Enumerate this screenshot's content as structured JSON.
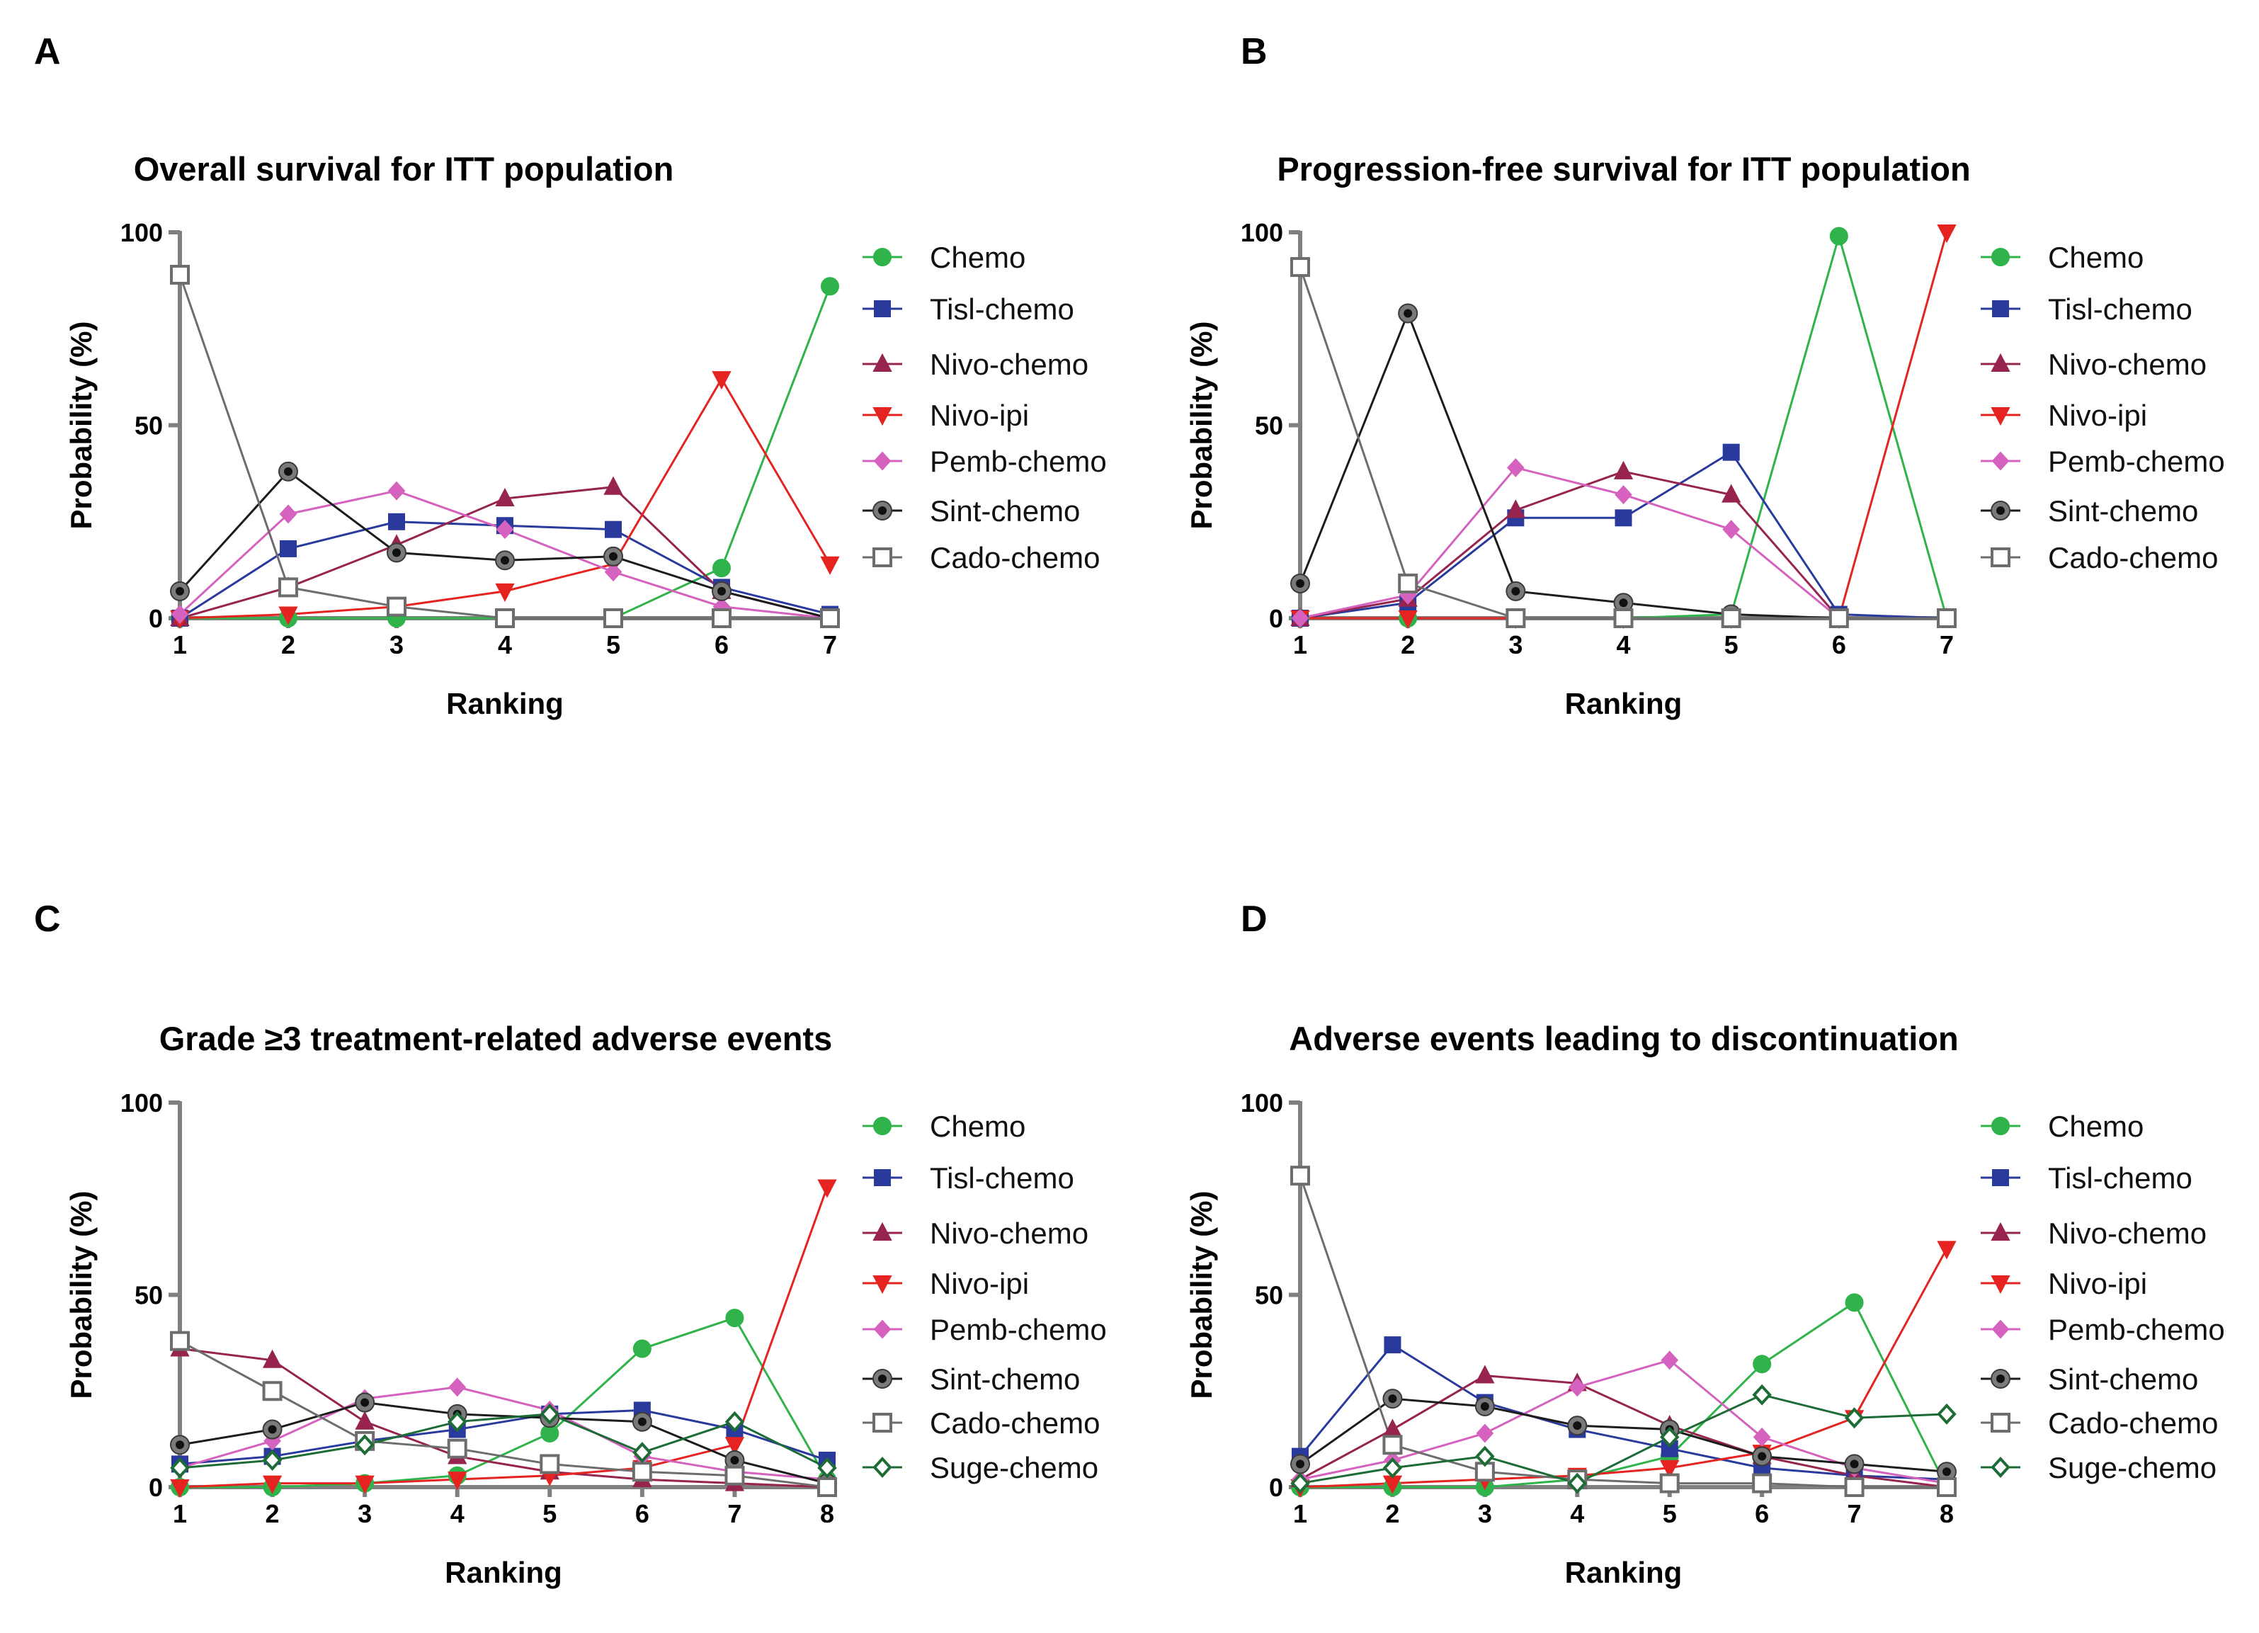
{
  "figure": {
    "series_styles": [
      {
        "name": "Chemo",
        "color": "#2fb34a",
        "marker": "circle",
        "fill": "#2fb34a"
      },
      {
        "name": "Tisl-chemo",
        "color": "#2a3a9c",
        "marker": "square",
        "fill": "#2a3a9c"
      },
      {
        "name": "Nivo-chemo",
        "color": "#96244f",
        "marker": "triangle-up",
        "fill": "#96244f"
      },
      {
        "name": "Nivo-ipi",
        "color": "#e52421",
        "marker": "triangle-down",
        "fill": "#e52421"
      },
      {
        "name": "Pemb-chemo",
        "color": "#d562be",
        "marker": "diamond",
        "fill": "#d562be"
      },
      {
        "name": "Sint-chemo",
        "color": "#1c1c1c",
        "marker": "circle-ring",
        "fill": "#1c1c1c"
      },
      {
        "name": "Cado-chemo",
        "color": "#6d6d6d",
        "marker": "square-open",
        "fill": "#ffffff"
      },
      {
        "name": "Suge-chemo",
        "color": "#1d6b35",
        "marker": "diamond-open",
        "fill": "#ffffff"
      }
    ],
    "axis_color": "#808080"
  },
  "chart_data": [
    {
      "panel": "A",
      "type": "line",
      "title": "Overall survival for ITT population",
      "xlabel": "Ranking",
      "ylabel": "Probability (%)",
      "x": [
        1,
        2,
        3,
        4,
        5,
        6,
        7
      ],
      "xlim": [
        1,
        7
      ],
      "ylim": [
        0,
        100
      ],
      "yticks": [
        0,
        50,
        100
      ],
      "series": [
        {
          "name": "Chemo",
          "values": [
            0,
            0,
            0,
            0,
            0,
            13,
            86
          ]
        },
        {
          "name": "Tisl-chemo",
          "values": [
            0,
            18,
            25,
            24,
            23,
            8,
            1
          ]
        },
        {
          "name": "Nivo-chemo",
          "values": [
            0,
            8,
            19,
            31,
            34,
            7,
            0
          ]
        },
        {
          "name": "Nivo-ipi",
          "values": [
            0,
            1,
            3,
            7,
            14,
            62,
            14
          ]
        },
        {
          "name": "Pemb-chemo",
          "values": [
            1,
            27,
            33,
            23,
            12,
            3,
            0
          ]
        },
        {
          "name": "Sint-chemo",
          "values": [
            7,
            38,
            17,
            15,
            16,
            7,
            0
          ]
        },
        {
          "name": "Cado-chemo",
          "values": [
            89,
            8,
            3,
            0,
            0,
            0,
            0
          ]
        }
      ]
    },
    {
      "panel": "B",
      "type": "line",
      "title": "Progression-free survival for ITT population",
      "xlabel": "Ranking",
      "ylabel": "Probability (%)",
      "x": [
        1,
        2,
        3,
        4,
        5,
        6,
        7
      ],
      "xlim": [
        1,
        7
      ],
      "ylim": [
        0,
        100
      ],
      "yticks": [
        0,
        50,
        100
      ],
      "series": [
        {
          "name": "Chemo",
          "values": [
            0,
            0,
            0,
            0,
            1,
            99,
            0
          ]
        },
        {
          "name": "Tisl-chemo",
          "values": [
            0,
            4,
            26,
            26,
            43,
            1,
            0
          ]
        },
        {
          "name": "Nivo-chemo",
          "values": [
            0,
            5,
            28,
            38,
            32,
            0,
            0
          ]
        },
        {
          "name": "Nivo-ipi",
          "values": [
            0,
            0,
            0,
            0,
            0,
            0,
            100
          ]
        },
        {
          "name": "Pemb-chemo",
          "values": [
            0,
            6,
            39,
            32,
            23,
            0,
            0
          ]
        },
        {
          "name": "Sint-chemo",
          "values": [
            9,
            79,
            7,
            4,
            1,
            0,
            0
          ]
        },
        {
          "name": "Cado-chemo",
          "values": [
            91,
            9,
            0,
            0,
            0,
            0,
            0
          ]
        }
      ]
    },
    {
      "panel": "C",
      "type": "line",
      "title": "Grade ≥3 treatment-related adverse events",
      "xlabel": "Ranking",
      "ylabel": "Probability (%)",
      "x": [
        1,
        2,
        3,
        4,
        5,
        6,
        7,
        8
      ],
      "xlim": [
        1,
        8
      ],
      "ylim": [
        0,
        100
      ],
      "yticks": [
        0,
        50,
        100
      ],
      "series": [
        {
          "name": "Chemo",
          "values": [
            0,
            0,
            1,
            3,
            14,
            36,
            44,
            2
          ]
        },
        {
          "name": "Tisl-chemo",
          "values": [
            6,
            8,
            12,
            15,
            19,
            20,
            15,
            7
          ]
        },
        {
          "name": "Nivo-chemo",
          "values": [
            36,
            33,
            17,
            8,
            4,
            2,
            1,
            0
          ]
        },
        {
          "name": "Nivo-ipi",
          "values": [
            0,
            1,
            1,
            2,
            3,
            5,
            11,
            78
          ]
        },
        {
          "name": "Pemb-chemo",
          "values": [
            5,
            12,
            23,
            26,
            20,
            8,
            4,
            2
          ]
        },
        {
          "name": "Sint-chemo",
          "values": [
            11,
            15,
            22,
            19,
            18,
            17,
            7,
            1
          ]
        },
        {
          "name": "Cado-chemo",
          "values": [
            38,
            25,
            12,
            10,
            6,
            4,
            3,
            0
          ]
        },
        {
          "name": "Suge-chemo",
          "values": [
            5,
            7,
            11,
            17,
            19,
            9,
            17,
            5
          ]
        }
      ]
    },
    {
      "panel": "D",
      "type": "line",
      "title": "Adverse events leading to discontinuation",
      "xlabel": "Ranking",
      "ylabel": "Probability (%)",
      "x": [
        1,
        2,
        3,
        4,
        5,
        6,
        7,
        8
      ],
      "xlim": [
        1,
        8
      ],
      "ylim": [
        0,
        100
      ],
      "yticks": [
        0,
        50,
        100
      ],
      "series": [
        {
          "name": "Chemo",
          "values": [
            0,
            0,
            0,
            2,
            8,
            32,
            48,
            0
          ]
        },
        {
          "name": "Tisl-chemo",
          "values": [
            8,
            37,
            22,
            15,
            10,
            5,
            3,
            2
          ]
        },
        {
          "name": "Nivo-chemo",
          "values": [
            2,
            15,
            29,
            27,
            16,
            8,
            3,
            0
          ]
        },
        {
          "name": "Nivo-ipi",
          "values": [
            0,
            1,
            2,
            3,
            5,
            9,
            18,
            62
          ]
        },
        {
          "name": "Pemb-chemo",
          "values": [
            2,
            7,
            14,
            26,
            33,
            13,
            5,
            1
          ]
        },
        {
          "name": "Sint-chemo",
          "values": [
            6,
            23,
            21,
            16,
            15,
            8,
            6,
            4
          ]
        },
        {
          "name": "Cado-chemo",
          "values": [
            81,
            11,
            4,
            2,
            1,
            1,
            0,
            0
          ]
        },
        {
          "name": "Suge-chemo",
          "values": [
            1,
            5,
            8,
            1,
            13,
            24,
            18,
            19
          ]
        }
      ]
    }
  ]
}
